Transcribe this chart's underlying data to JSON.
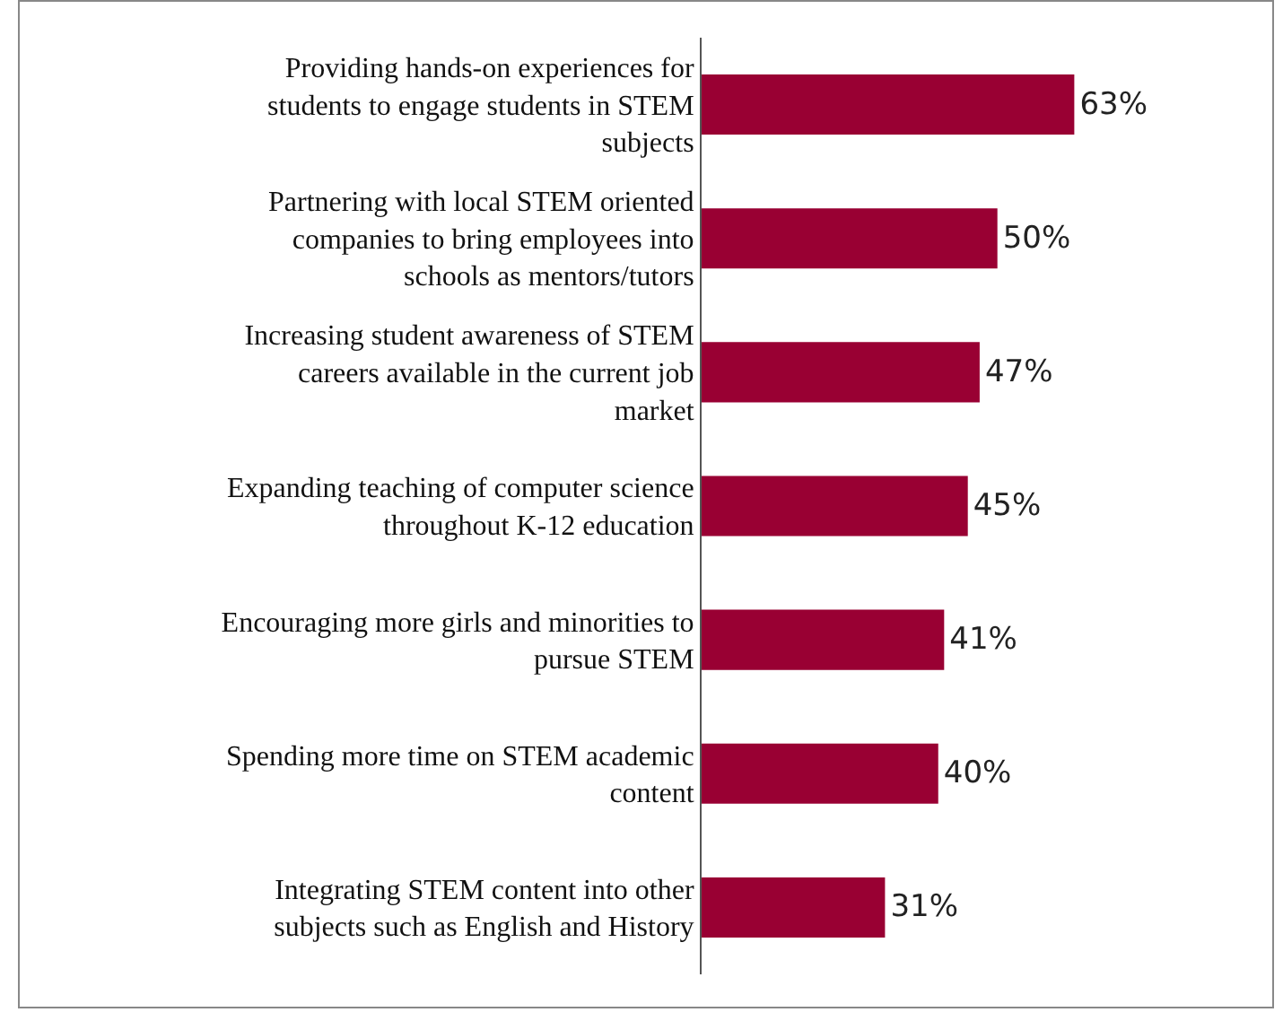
{
  "chart_data": {
    "type": "bar",
    "orientation": "horizontal",
    "categories": [
      "Providing hands-on experiences for students to engage students in STEM subjects",
      "Partnering with local STEM oriented companies to bring employees into schools as mentors/tutors",
      "Increasing student awareness of STEM careers available in the current job market",
      "Expanding teaching of computer science throughout K-12 education",
      "Encouraging more girls and minorities to pursue STEM",
      "Spending more time on STEM academic content",
      "Integrating STEM content into other subjects such as English and History"
    ],
    "values": [
      63,
      50,
      47,
      45,
      41,
      40,
      31
    ],
    "value_labels": [
      "63%",
      "50%",
      "47%",
      "45%",
      "41%",
      "40%",
      "31%"
    ],
    "color": "#990033"
  }
}
